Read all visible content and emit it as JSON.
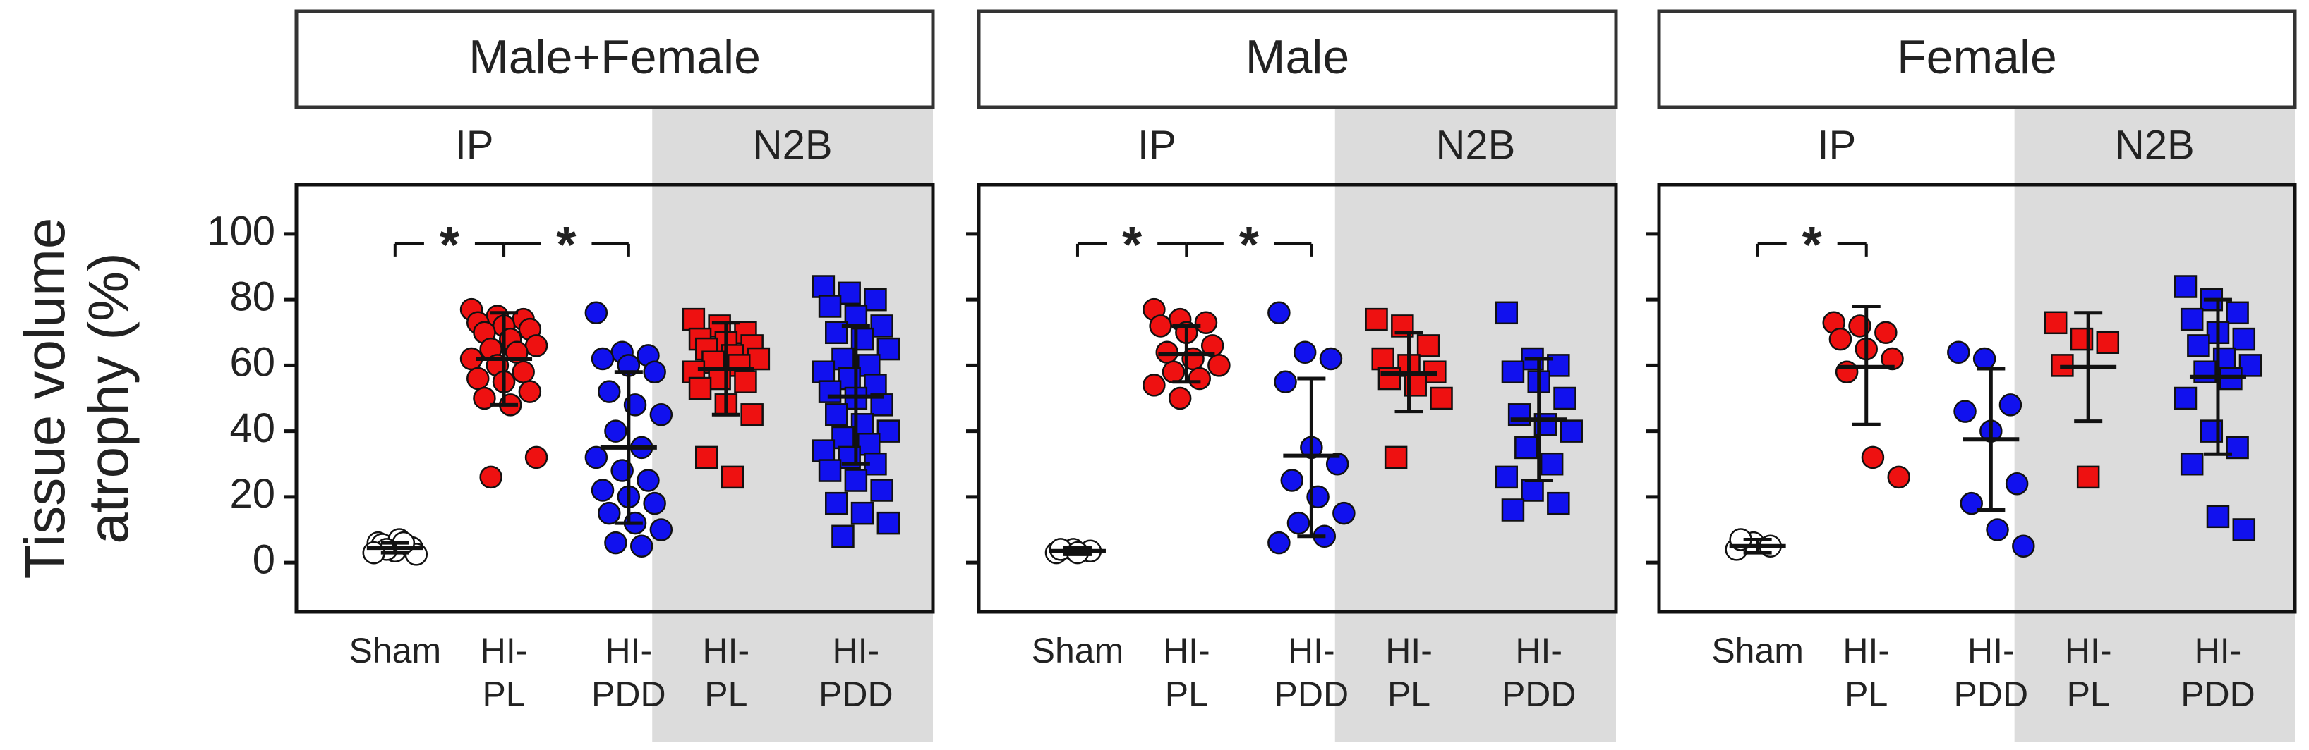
{
  "chart_data": {
    "type": "scatter",
    "ylabel_lines": [
      "Tissue volume",
      "atrophy  (%)"
    ],
    "ylim": [
      -15,
      115
    ],
    "yticks": [
      0,
      20,
      40,
      60,
      80,
      100
    ],
    "groups": [
      "IP",
      "N2B"
    ],
    "colors": {
      "sham": "#ffffff",
      "pl": "#ee1111",
      "pdd": "#1111ee",
      "n2b_band": "#dcdcdc"
    },
    "panels": [
      {
        "title": "Male+Female",
        "significance": [
          {
            "from": "Sham",
            "to": "HI-PL (IP)",
            "label": "*"
          },
          {
            "from": "HI-PL (IP)",
            "to": "HI-PDD (IP)",
            "label": "*"
          }
        ],
        "series": [
          {
            "cat_lines": [
              "Sham"
            ],
            "group": "IP",
            "marker": "circle",
            "color_key": "sham",
            "mean": 4.5,
            "sd_low": 3,
            "sd_high": 6,
            "values": [
              3,
              4,
              5,
              6,
              3.5,
              4.5,
              5.5,
              7,
              2.5,
              4,
              6,
              3
            ]
          },
          {
            "cat_lines": [
              "HI-",
              "PL"
            ],
            "group": "IP",
            "marker": "circle",
            "color_key": "pl",
            "mean": 62,
            "sd_low": 48,
            "sd_high": 76,
            "values": [
              77,
              75,
              74,
              73,
              72,
              71,
              70,
              68,
              66,
              65,
              64,
              62,
              60,
              58,
              56,
              55,
              52,
              50,
              48,
              32,
              26
            ]
          },
          {
            "cat_lines": [
              "HI-",
              "PDD"
            ],
            "group": "IP",
            "marker": "circle",
            "color_key": "pdd",
            "mean": 35,
            "sd_low": 12,
            "sd_high": 58,
            "values": [
              76,
              64,
              63,
              62,
              60,
              58,
              52,
              48,
              45,
              40,
              35,
              32,
              28,
              25,
              22,
              20,
              18,
              15,
              12,
              10,
              6,
              5
            ]
          },
          {
            "cat_lines": [
              "HI-",
              "PL"
            ],
            "group": "N2B",
            "marker": "square",
            "color_key": "pl",
            "mean": 59,
            "sd_low": 45,
            "sd_high": 73,
            "values": [
              74,
              72,
              70,
              68,
              67,
              66,
              65,
              63,
              62,
              61,
              60,
              58,
              56,
              55,
              53,
              48,
              45,
              32,
              26
            ]
          },
          {
            "cat_lines": [
              "HI-",
              "PDD"
            ],
            "group": "N2B",
            "marker": "square",
            "color_key": "pdd",
            "mean": 50.5,
            "sd_low": 30,
            "sd_high": 72,
            "values": [
              84,
              82,
              80,
              78,
              75,
              72,
              70,
              68,
              65,
              62,
              60,
              58,
              56,
              54,
              52,
              50,
              48,
              45,
              42,
              40,
              38,
              36,
              34,
              32,
              30,
              28,
              25,
              22,
              18,
              15,
              12,
              8
            ]
          }
        ]
      },
      {
        "title": "Male",
        "significance": [
          {
            "from": "Sham",
            "to": "HI-PL (IP)",
            "label": "*"
          },
          {
            "from": "HI-PL (IP)",
            "to": "HI-PDD (IP)",
            "label": "*"
          }
        ],
        "series": [
          {
            "cat_lines": [
              "Sham"
            ],
            "group": "IP",
            "marker": "circle",
            "color_key": "sham",
            "mean": 3.5,
            "sd_low": 2.5,
            "sd_high": 4.5,
            "values": [
              3,
              4,
              3.5,
              4,
              3
            ]
          },
          {
            "cat_lines": [
              "HI-",
              "PL"
            ],
            "group": "IP",
            "marker": "circle",
            "color_key": "pl",
            "mean": 63.5,
            "sd_low": 55,
            "sd_high": 72,
            "values": [
              77,
              74,
              73,
              72,
              70,
              66,
              64,
              62,
              60,
              58,
              56,
              54,
              50
            ]
          },
          {
            "cat_lines": [
              "HI-",
              "PDD"
            ],
            "group": "IP",
            "marker": "circle",
            "color_key": "pdd",
            "mean": 32.5,
            "sd_low": 8,
            "sd_high": 56,
            "values": [
              76,
              64,
              62,
              55,
              35,
              30,
              25,
              20,
              15,
              12,
              8,
              6
            ]
          },
          {
            "cat_lines": [
              "HI-",
              "PL"
            ],
            "group": "N2B",
            "marker": "square",
            "color_key": "pl",
            "mean": 57.5,
            "sd_low": 46,
            "sd_high": 70,
            "values": [
              74,
              72,
              66,
              62,
              60,
              58,
              56,
              54,
              50,
              32
            ]
          },
          {
            "cat_lines": [
              "HI-",
              "PDD"
            ],
            "group": "N2B",
            "marker": "square",
            "color_key": "pdd",
            "mean": 43.5,
            "sd_low": 25,
            "sd_high": 62,
            "values": [
              76,
              62,
              60,
              58,
              55,
              50,
              45,
              42,
              40,
              35,
              30,
              26,
              22,
              18,
              16
            ]
          }
        ]
      },
      {
        "title": "Female",
        "significance": [
          {
            "from": "Sham",
            "to": "HI-PL (IP)",
            "label": "*"
          }
        ],
        "series": [
          {
            "cat_lines": [
              "Sham"
            ],
            "group": "IP",
            "marker": "circle",
            "color_key": "sham",
            "mean": 5,
            "sd_low": 3,
            "sd_high": 7,
            "values": [
              4,
              6,
              5,
              7
            ]
          },
          {
            "cat_lines": [
              "HI-",
              "PL"
            ],
            "group": "IP",
            "marker": "circle",
            "color_key": "pl",
            "mean": 59.5,
            "sd_low": 42,
            "sd_high": 78,
            "values": [
              73,
              72,
              70,
              68,
              65,
              62,
              58,
              32,
              26
            ]
          },
          {
            "cat_lines": [
              "HI-",
              "PDD"
            ],
            "group": "IP",
            "marker": "circle",
            "color_key": "pdd",
            "mean": 37.5,
            "sd_low": 16,
            "sd_high": 59,
            "values": [
              64,
              62,
              48,
              46,
              40,
              24,
              18,
              10,
              5
            ]
          },
          {
            "cat_lines": [
              "HI-",
              "PL"
            ],
            "group": "N2B",
            "marker": "square",
            "color_key": "pl",
            "mean": 59.5,
            "sd_low": 43,
            "sd_high": 76,
            "values": [
              73,
              68,
              67,
              60,
              26
            ]
          },
          {
            "cat_lines": [
              "HI-",
              "PDD"
            ],
            "group": "N2B",
            "marker": "square",
            "color_key": "pdd",
            "mean": 56.5,
            "sd_low": 33,
            "sd_high": 80,
            "values": [
              84,
              80,
              76,
              74,
              70,
              68,
              66,
              62,
              60,
              58,
              56,
              50,
              40,
              35,
              30,
              14,
              10
            ]
          }
        ]
      }
    ]
  }
}
